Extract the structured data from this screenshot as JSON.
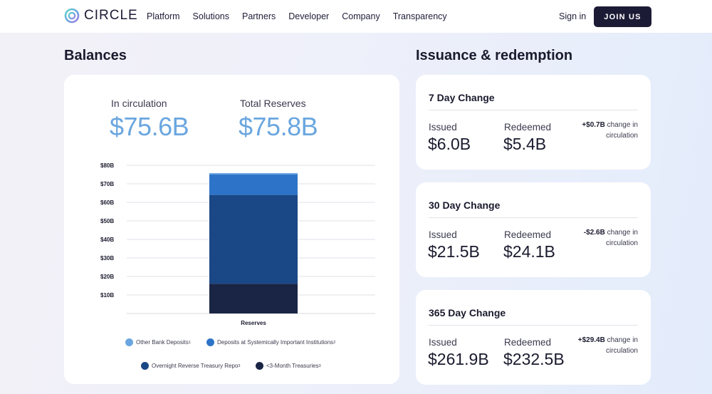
{
  "header": {
    "logo_text": "CIRCLE",
    "nav": [
      "Platform",
      "Solutions",
      "Partners",
      "Developer",
      "Company",
      "Transparency"
    ],
    "signin_label": "Sign in",
    "join_label": "JOIN US"
  },
  "balances": {
    "title": "Balances",
    "circulation_label": "In circulation",
    "circulation_value": "$75.6B",
    "reserves_label": "Total Reserves",
    "reserves_value": "$75.8B"
  },
  "chart_data": {
    "type": "bar",
    "stacked": true,
    "categories": [
      "Reserves"
    ],
    "series": [
      {
        "name": "<3-Month Treasuries",
        "values": [
          16
        ],
        "color": "#1a2545",
        "sup": "3"
      },
      {
        "name": "Overnight Reverse Treasury Repo",
        "values": [
          48
        ],
        "color": "#1a4785",
        "sup": "3"
      },
      {
        "name": "Deposits at Systemically Important Institutions",
        "values": [
          11
        ],
        "color": "#2d74c8",
        "sup": "2"
      },
      {
        "name": "Other Bank Deposits",
        "values": [
          0.8
        ],
        "color": "#6aa6df",
        "sup": "1"
      }
    ],
    "y_ticks": [
      "$80B",
      "$70B",
      "$60B",
      "$50B",
      "$40B",
      "$30B",
      "$20B",
      "$10B"
    ],
    "ylim": [
      0,
      80
    ],
    "xlabel": "Reserves",
    "legend_position": "bottom"
  },
  "issuance": {
    "title": "Issuance & redemption",
    "cards": [
      {
        "title": "7 Day Change",
        "issued_label": "Issued",
        "issued": "$6.0B",
        "redeemed_label": "Redeemed",
        "redeemed": "$5.4B",
        "change": "+$0.7B",
        "change_text": "change in circulation"
      },
      {
        "title": "30 Day Change",
        "issued_label": "Issued",
        "issued": "$21.5B",
        "redeemed_label": "Redeemed",
        "redeemed": "$24.1B",
        "change": "-$2.6B",
        "change_text": "change in circulation"
      },
      {
        "title": "365 Day Change",
        "issued_label": "Issued",
        "issued": "$261.9B",
        "redeemed_label": "Redeemed",
        "redeemed": "$232.5B",
        "change": "+$29.4B",
        "change_text": "change in circulation"
      }
    ]
  },
  "colors": {
    "accent": "#6aa6df",
    "dark": "#1c1b35"
  }
}
